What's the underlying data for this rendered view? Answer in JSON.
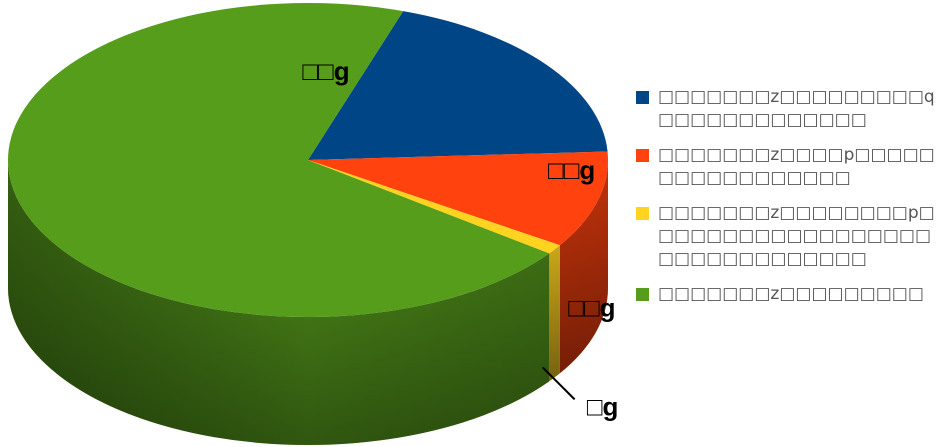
{
  "chart_data": {
    "type": "pie",
    "view": "3d",
    "title": "",
    "categories": [
      "□□□□□□□z□□□□□□□□□q□□□□□□□□□□□□□",
      "□□□□□□□z□□□□p□□□□□□□□□□□□□□□□□",
      "□□□□□□□z□□□□□□□□p□□□□□□□□□□□□□□□□□□□□□□□□□□□□□□□",
      "□□□□□□□z□□□□□□□□□"
    ],
    "values": [
      19,
      10,
      1,
      70
    ],
    "data_labels": [
      "□□g",
      "□□g",
      "□g",
      "□□g"
    ],
    "colors": [
      "#004586",
      "#ff420e",
      "#ffd320",
      "#579d1c"
    ],
    "legend_position": "right"
  }
}
